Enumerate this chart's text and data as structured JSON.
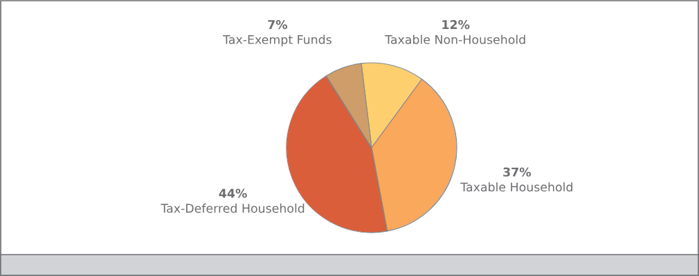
{
  "chart_data": {
    "type": "pie",
    "categories": [
      "Taxable Non-Household",
      "Taxable Household",
      "Tax-Deferred Household",
      "Tax-Exempt Funds"
    ],
    "values": [
      12,
      37,
      44,
      7
    ],
    "value_labels": [
      "12%",
      "37%",
      "44%",
      "7%"
    ],
    "colors": [
      "#fecf6e",
      "#f9a85c",
      "#db5e3a",
      "#cf9d69"
    ],
    "legend": false
  }
}
